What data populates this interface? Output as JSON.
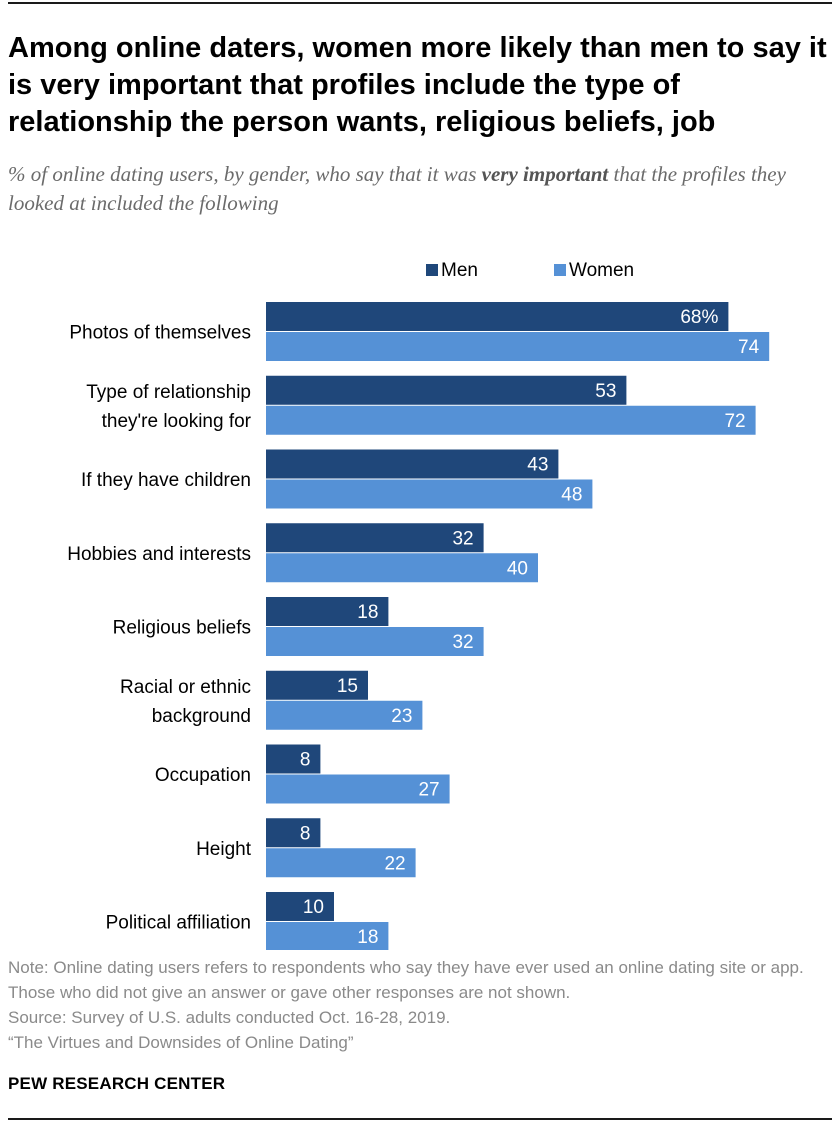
{
  "title": "Among online daters, women more likely than men to say it is very important that profiles include the type of relationship the person wants, religious beliefs, job",
  "subtitle_pre": "% of online dating users, by gender, who say that it was ",
  "subtitle_emph": "very important",
  "subtitle_post": " that the profiles they looked at included the following",
  "notes": {
    "note": "Note: Online dating users refers to respondents who say they have ever used an online dating site or app. Those who did not give an answer or gave other responses are not shown.",
    "source": "Source: Survey of U.S. adults conducted Oct. 16-28, 2019.",
    "report": "“The Virtues and Downsides of Online Dating”"
  },
  "brand": "PEW RESEARCH CENTER",
  "colors": {
    "men": "#1f477a",
    "women": "#5591d6",
    "label_on_bar": "#ffffff"
  },
  "chart_data": {
    "type": "bar",
    "orientation": "horizontal",
    "legend_position": "top",
    "grid": false,
    "xlim": [
      0,
      100
    ],
    "categories": [
      [
        "Photos of themselves"
      ],
      [
        "Type of relationship",
        "they're looking for"
      ],
      [
        "If they have children"
      ],
      [
        "Hobbies and interests"
      ],
      [
        "Religious beliefs"
      ],
      [
        "Racial or ethnic",
        "background"
      ],
      [
        "Occupation"
      ],
      [
        "Height"
      ],
      [
        "Political affiliation"
      ]
    ],
    "series": [
      {
        "name": "Men",
        "values": [
          68,
          53,
          43,
          32,
          18,
          15,
          8,
          8,
          10
        ],
        "first_label": "68%"
      },
      {
        "name": "Women",
        "values": [
          74,
          72,
          48,
          40,
          32,
          23,
          27,
          22,
          18
        ]
      }
    ]
  }
}
